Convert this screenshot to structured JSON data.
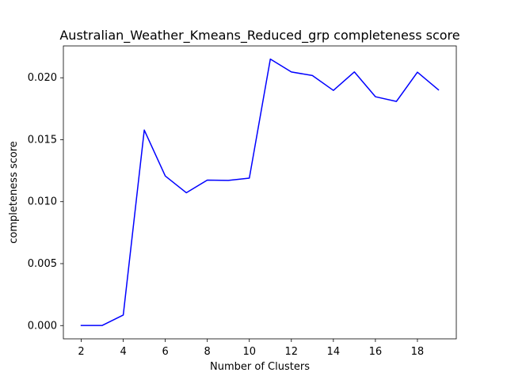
{
  "chart_data": {
    "type": "line",
    "title": "Australian_Weather_Kmeans_Reduced_grp completeness score",
    "xlabel": "Number of Clusters",
    "ylabel": "completeness score",
    "xlim": [
      1.15,
      19.85
    ],
    "ylim": [
      -0.00107,
      0.02257
    ],
    "grid": false,
    "line_color": "#0000ff",
    "x_ticks": [
      2,
      4,
      6,
      8,
      10,
      12,
      14,
      16,
      18
    ],
    "y_ticks": [
      0.0,
      0.005,
      0.01,
      0.015,
      0.02
    ],
    "x_tick_labels": [
      "2",
      "4",
      "6",
      "8",
      "10",
      "12",
      "14",
      "16",
      "18"
    ],
    "y_tick_labels": [
      "0.000",
      "0.005",
      "0.010",
      "0.015",
      "0.020"
    ],
    "series": [
      {
        "x": [
          2,
          3,
          4,
          5,
          6,
          7,
          8,
          9,
          10,
          11,
          12,
          13,
          14,
          15,
          16,
          17,
          18,
          19
        ],
        "values": [
          1e-05,
          1e-05,
          0.00085,
          0.01578,
          0.01207,
          0.01072,
          0.01174,
          0.01172,
          0.0119,
          0.02151,
          0.02047,
          0.02018,
          0.01898,
          0.02047,
          0.01847,
          0.01809,
          0.02045,
          0.01903
        ]
      }
    ]
  }
}
